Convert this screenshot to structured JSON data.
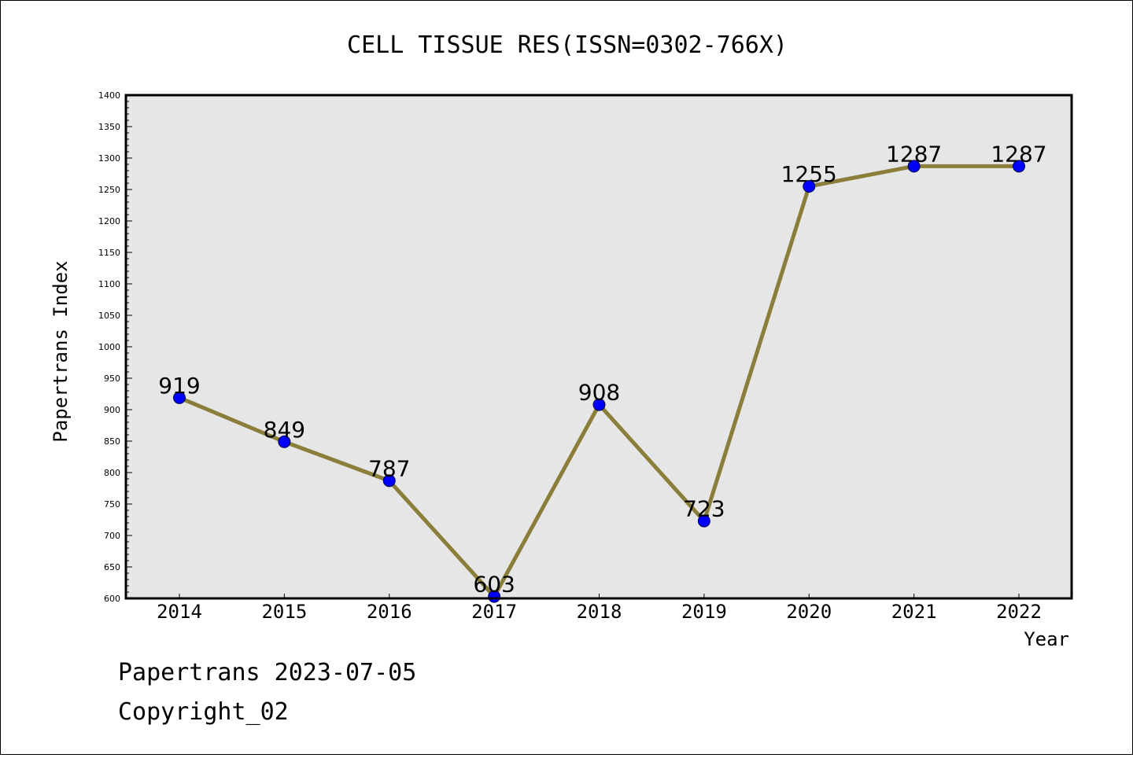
{
  "chart_data": {
    "type": "line",
    "title": "CELL TISSUE RES(ISSN=0302-766X)",
    "xlabel": "Year",
    "ylabel": "Papertrans Index",
    "categories": [
      "2014",
      "2015",
      "2016",
      "2017",
      "2018",
      "2019",
      "2020",
      "2021",
      "2022"
    ],
    "series": [
      {
        "values": [
          919,
          849,
          787,
          603,
          908,
          723,
          1255,
          1287,
          1287
        ]
      }
    ],
    "data_labels": [
      "919",
      "849",
      "787",
      "603",
      "908",
      "723",
      "1255",
      "1287",
      "1287"
    ],
    "ylim": [
      600,
      1400
    ],
    "yticks": [
      "600",
      "650",
      "700",
      "750",
      "800",
      "850",
      "900",
      "950",
      "1000",
      "1050",
      "1100",
      "1150",
      "1200",
      "1250",
      "1300",
      "1350",
      "1400"
    ],
    "grid": false,
    "legend": "none",
    "colors": {
      "line": "#8b7d3a",
      "marker": "#0000ff",
      "plot_background": "#e6e6e6"
    }
  },
  "footer": {
    "line1": "Papertrans 2023-07-05",
    "line2": "Copyright_02"
  }
}
